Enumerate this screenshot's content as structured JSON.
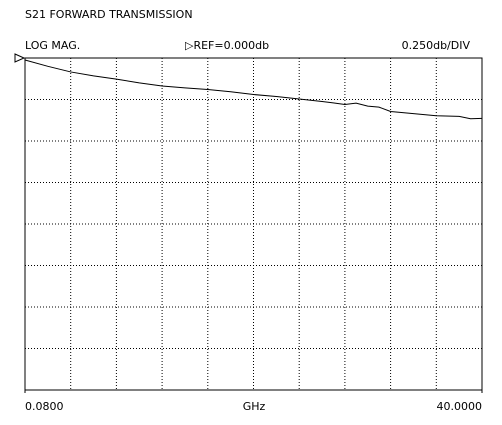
{
  "chart_data": {
    "type": "line",
    "title": "S21 FORWARD TRANSMISSION",
    "format_label": "LOG MAG.",
    "ref_label": "▷REF=0.000db",
    "scale_label": "0.250db/DIV",
    "xlabel": "GHz",
    "x": [
      0.08,
      2.076,
      4.072,
      6.068,
      8.064,
      10.06,
      12.056,
      14.052,
      16.048,
      18.044,
      20.04,
      22.036,
      24.032,
      26.028,
      27.0,
      28.024,
      29.0,
      30.02,
      31.0,
      32.016,
      34.012,
      36.008,
      38.004,
      39.0,
      40.0
    ],
    "series": [
      {
        "color": "#000000",
        "values": [
          -0.012,
          -0.05,
          -0.084,
          -0.108,
          -0.127,
          -0.15,
          -0.169,
          -0.18,
          -0.19,
          -0.203,
          -0.22,
          -0.232,
          -0.247,
          -0.262,
          -0.27,
          -0.28,
          -0.272,
          -0.29,
          -0.296,
          -0.322,
          -0.335,
          -0.348,
          -0.352,
          -0.366,
          -0.364
        ]
      }
    ],
    "xlim": [
      0.08,
      40.0
    ],
    "xticks": [
      {
        "value": 0.08,
        "label": "0.0800"
      },
      {
        "value": 40.0,
        "label": "40.0000"
      }
    ],
    "ylim": [
      -2.0,
      0.0
    ],
    "yticks": [
      -2.0,
      -1.75,
      -1.5,
      -1.25,
      -1.0,
      -0.75,
      -0.5,
      -0.25,
      0.0
    ],
    "x_divisions": 10,
    "grid": true
  }
}
